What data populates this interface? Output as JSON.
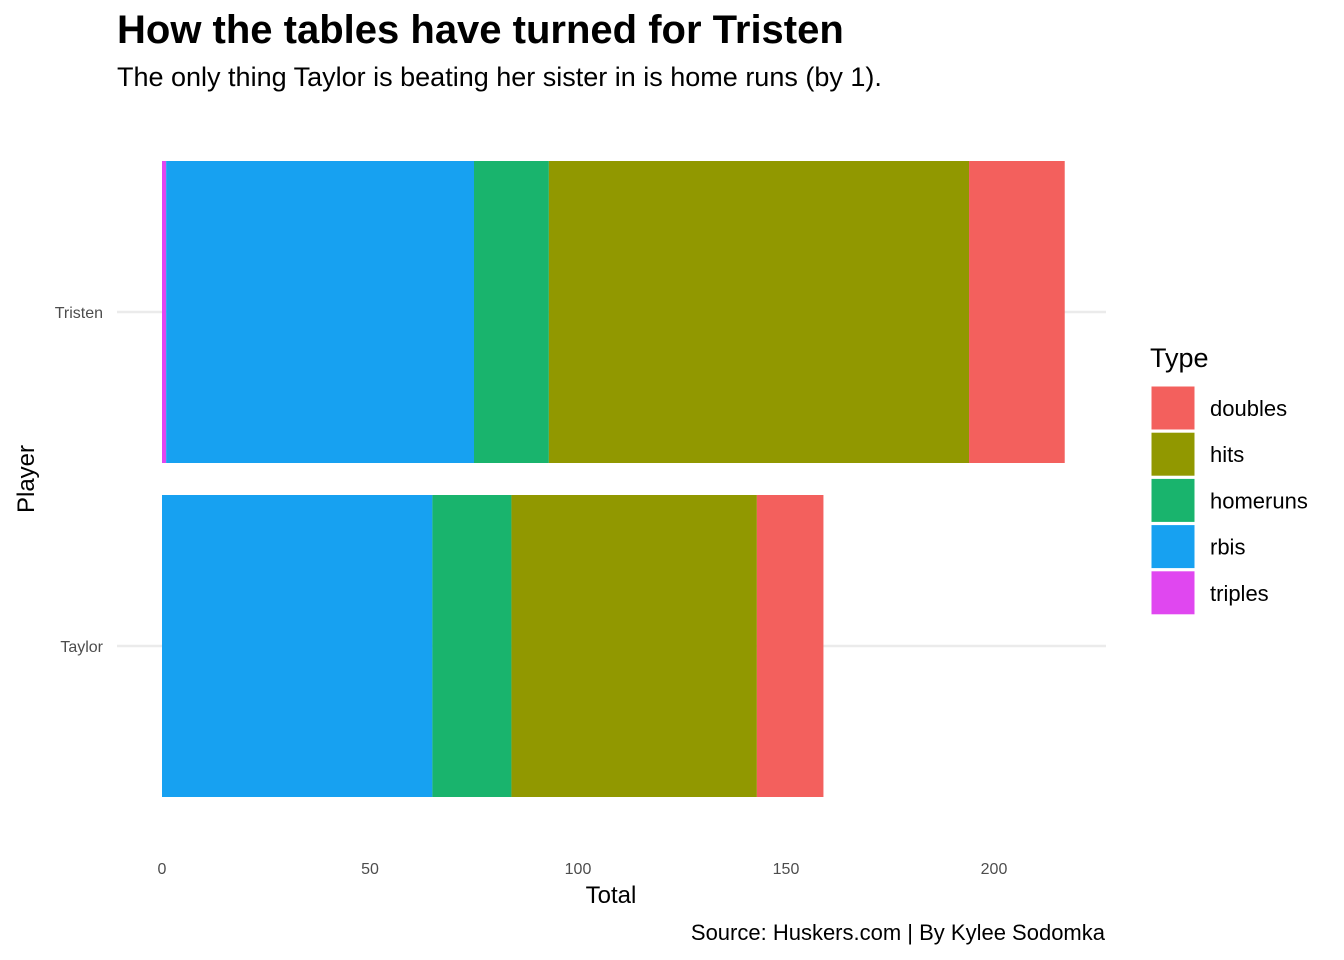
{
  "chart_data": {
    "type": "bar",
    "orientation": "horizontal",
    "stacked": true,
    "title": "How the tables have turned for Tristen",
    "subtitle": "The only thing Taylor is beating her sister in is home runs (by 1).",
    "caption": "Source: Huskers.com | By Kylee Sodomka",
    "xlabel": "Total",
    "ylabel": "Player",
    "xlim": [
      0,
      220
    ],
    "x_ticks": [
      0,
      50,
      100,
      150,
      200
    ],
    "grid": true,
    "legend_title": "Type",
    "legend_position": "right",
    "categories": [
      "Tristen",
      "Taylor"
    ],
    "series": [
      {
        "name": "triples",
        "color": "#E047F0",
        "values": [
          1,
          0
        ]
      },
      {
        "name": "rbis",
        "color": "#17A1F1",
        "values": [
          74,
          65
        ]
      },
      {
        "name": "homeruns",
        "color": "#19B46D",
        "values": [
          18,
          19
        ]
      },
      {
        "name": "hits",
        "color": "#919800",
        "values": [
          101,
          59
        ]
      },
      {
        "name": "doubles",
        "color": "#F3605D",
        "values": [
          23,
          16
        ]
      }
    ],
    "legend_order": [
      "doubles",
      "hits",
      "homeruns",
      "rbis",
      "triples"
    ]
  }
}
